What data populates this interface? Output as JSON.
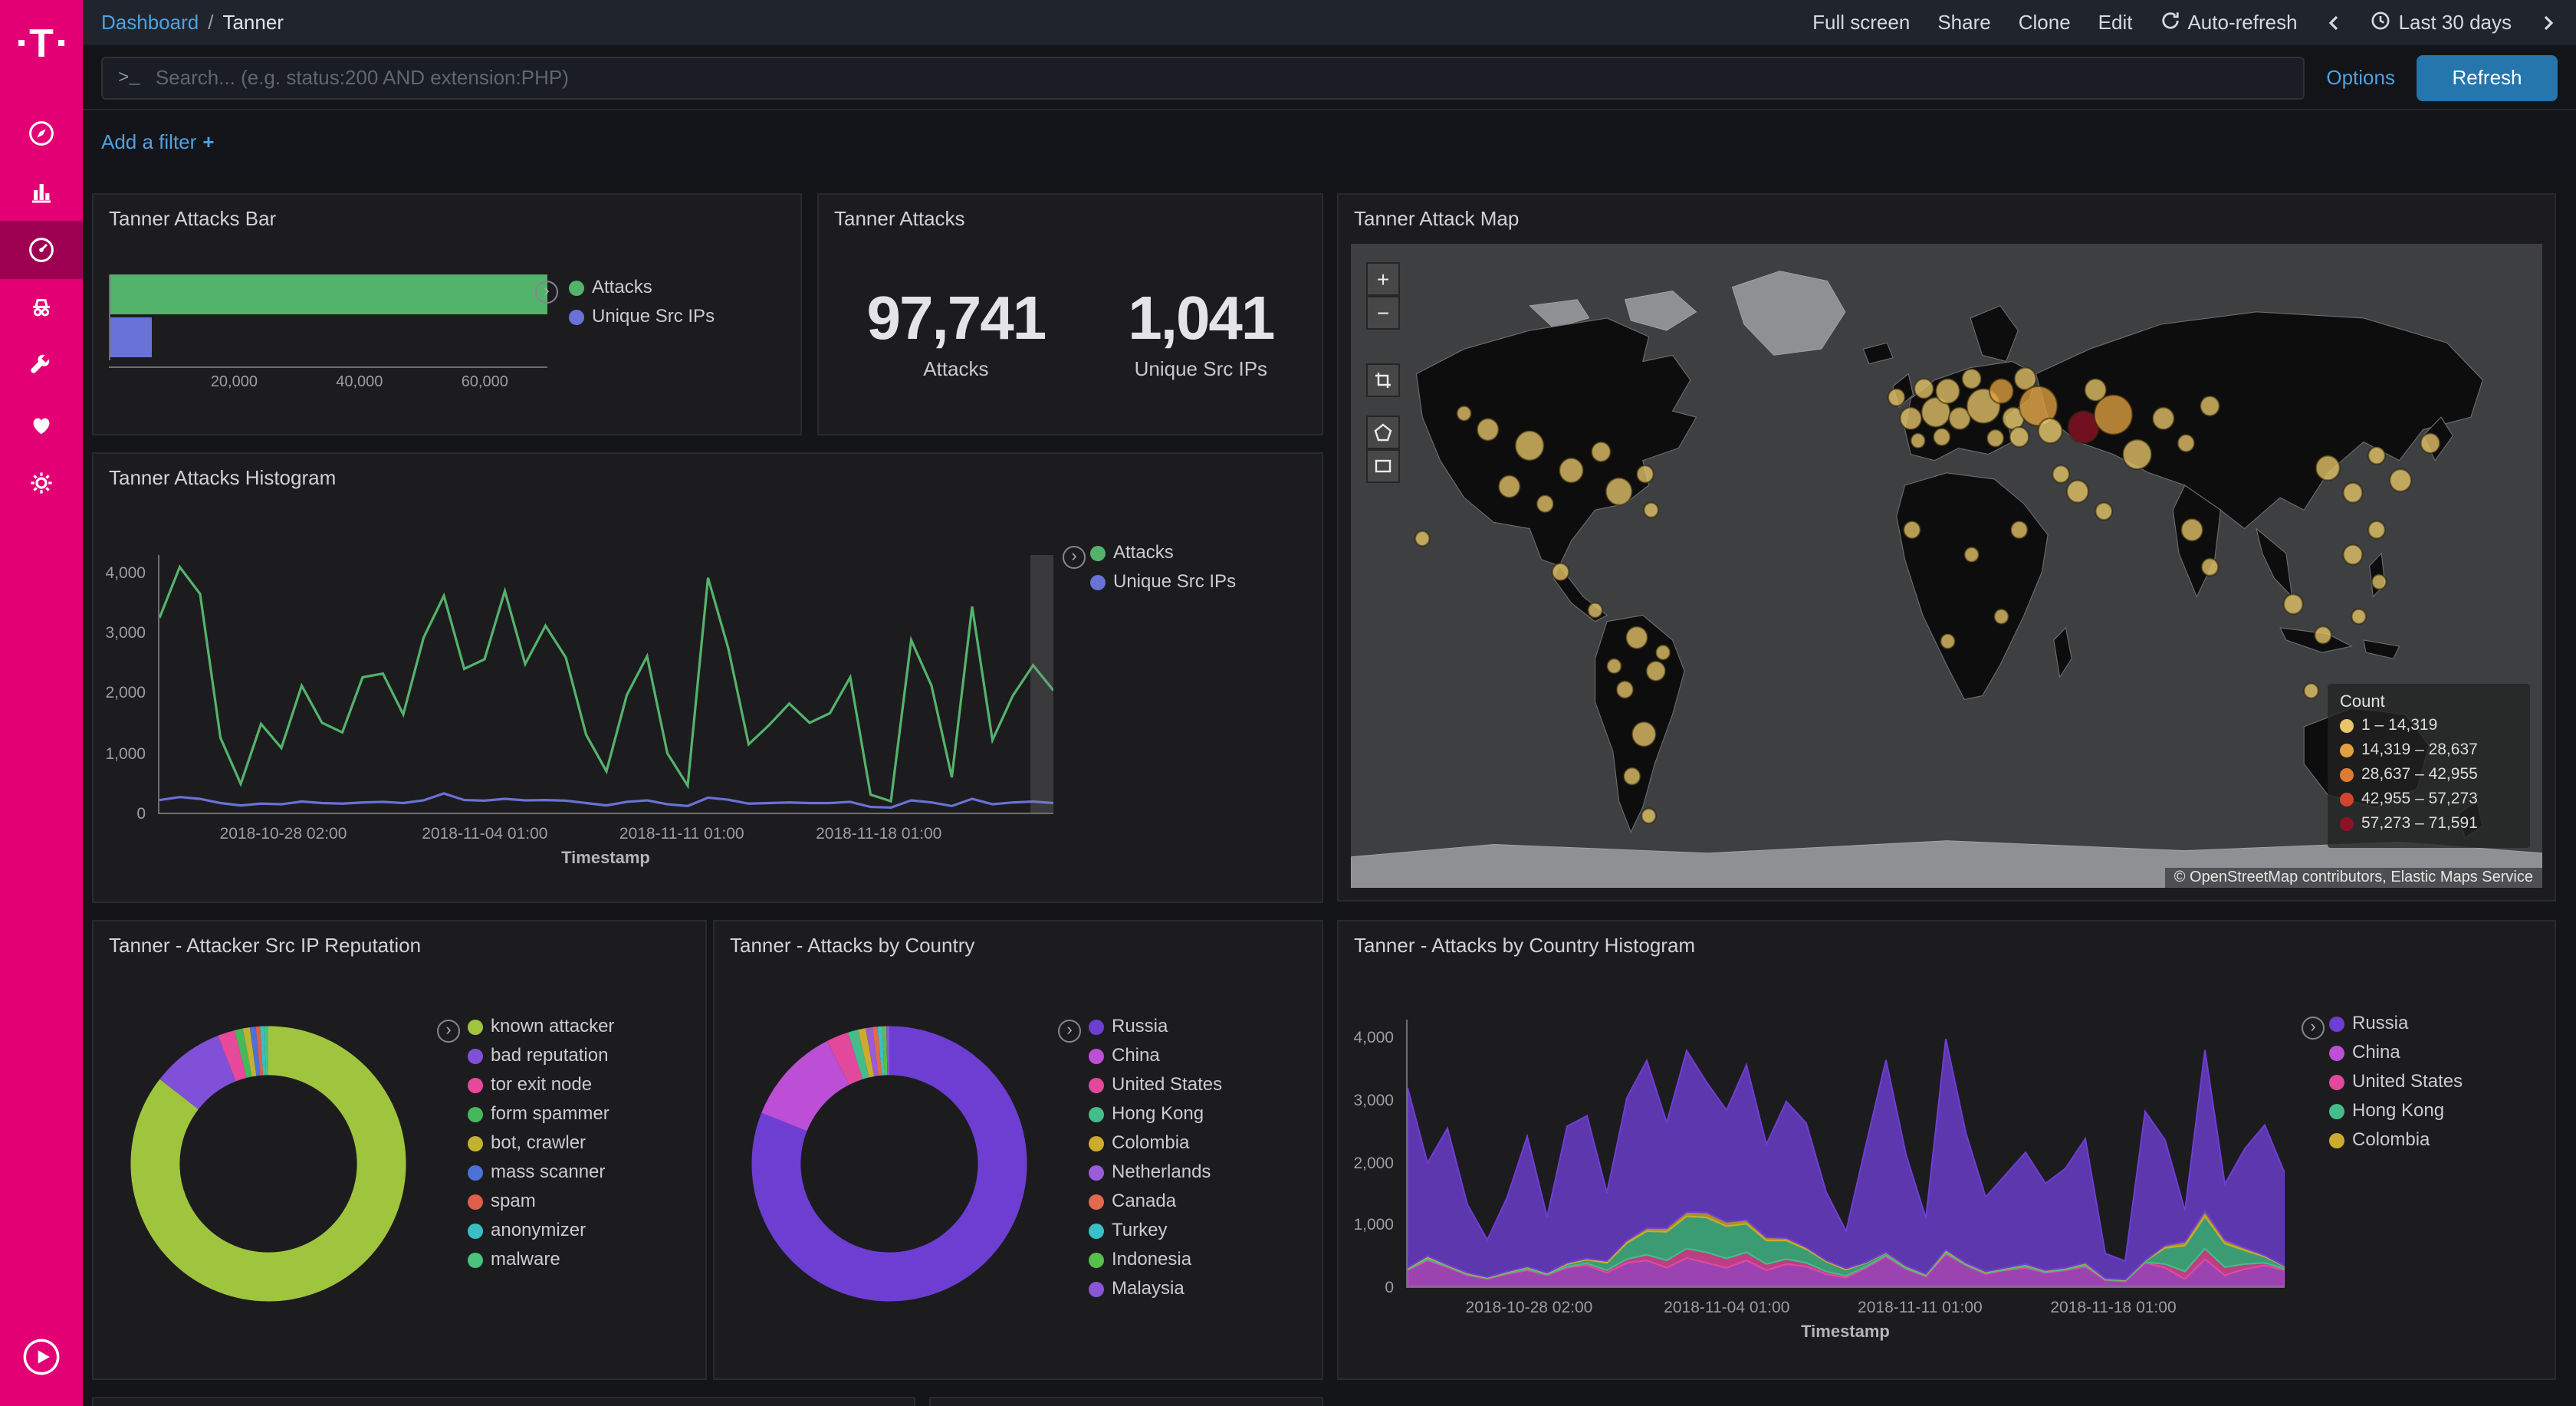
{
  "brand": {
    "logo_letter": "T"
  },
  "topbar": {
    "breadcrumb": {
      "root": "Dashboard",
      "sep": "/",
      "current": "Tanner"
    },
    "actions": {
      "full_screen": "Full screen",
      "share": "Share",
      "clone": "Clone",
      "edit": "Edit"
    },
    "auto_refresh": "Auto-refresh",
    "time_range": "Last 30 days"
  },
  "searchbar": {
    "prompt": ">_",
    "placeholder": "Search... (e.g. status:200 AND extension:PHP)",
    "options_label": "Options",
    "refresh_label": "Refresh"
  },
  "filterbar": {
    "add_filter_label": "Add a filter",
    "plus": "+"
  },
  "panels": {
    "attacks_bar": {
      "title": "Tanner Attacks Bar",
      "chart": {
        "type": "bar",
        "orientation": "horizontal",
        "axis_max": 70000,
        "bars": [
          {
            "label": "Attacks",
            "value": 97741,
            "color": "#54b36b"
          },
          {
            "label": "Unique Src IPs",
            "value": 1041,
            "color": "#6972d6",
            "min_frac": 0.095
          }
        ],
        "xticks": [
          {
            "label": "20,000",
            "v": 20000
          },
          {
            "label": "40,000",
            "v": 40000
          },
          {
            "label": "60,000",
            "v": 60000
          }
        ]
      },
      "legend": [
        {
          "label": "Attacks",
          "color": "#54b36b"
        },
        {
          "label": "Unique Src IPs",
          "color": "#6972d6"
        }
      ]
    },
    "attacks_metric": {
      "title": "Tanner Attacks",
      "metrics": [
        {
          "value": "97,741",
          "label": "Attacks"
        },
        {
          "value": "1,041",
          "label": "Unique Src IPs"
        }
      ]
    },
    "attack_map": {
      "title": "Tanner Attack Map",
      "zoom_in": "+",
      "zoom_out": "−",
      "legend_title": "Count",
      "legend": [
        {
          "label": "1 – 14,319",
          "color": "#e7c568"
        },
        {
          "label": "14,319 – 28,637",
          "color": "#e2a13f"
        },
        {
          "label": "28,637 – 42,955",
          "color": "#df7b33"
        },
        {
          "label": "42,955 – 57,273",
          "color": "#d2452e"
        },
        {
          "label": "57,273 – 71,591",
          "color": "#8e1226"
        }
      ],
      "attribution": "© OpenStreetMap contributors, Elastic Maps Service",
      "markers": [
        [
          115,
          150,
          9,
          0
        ],
        [
          150,
          163,
          12,
          0
        ],
        [
          185,
          183,
          10,
          0
        ],
        [
          210,
          168,
          8,
          0
        ],
        [
          133,
          196,
          9,
          0
        ],
        [
          163,
          210,
          7,
          0
        ],
        [
          225,
          200,
          11,
          0
        ],
        [
          247,
          186,
          7,
          0
        ],
        [
          95,
          137,
          6,
          0
        ],
        [
          252,
          215,
          6,
          0
        ],
        [
          60,
          238,
          6,
          0
        ],
        [
          176,
          265,
          7,
          0
        ],
        [
          205,
          296,
          6,
          0
        ],
        [
          240,
          318,
          9,
          0
        ],
        [
          256,
          345,
          8,
          0
        ],
        [
          230,
          360,
          7,
          0
        ],
        [
          246,
          396,
          10,
          0
        ],
        [
          236,
          430,
          7,
          0
        ],
        [
          262,
          330,
          6,
          0
        ],
        [
          221,
          341,
          6,
          0
        ],
        [
          250,
          462,
          6,
          0
        ],
        [
          458,
          124,
          7,
          0
        ],
        [
          470,
          141,
          9,
          0
        ],
        [
          481,
          117,
          8,
          0
        ],
        [
          491,
          136,
          12,
          0
        ],
        [
          501,
          119,
          10,
          0
        ],
        [
          511,
          141,
          9,
          0
        ],
        [
          521,
          109,
          8,
          0
        ],
        [
          531,
          131,
          14,
          0
        ],
        [
          546,
          119,
          10,
          1
        ],
        [
          556,
          141,
          9,
          0
        ],
        [
          566,
          109,
          9,
          0
        ],
        [
          577,
          131,
          16,
          1
        ],
        [
          587,
          151,
          10,
          0
        ],
        [
          561,
          156,
          8,
          0
        ],
        [
          541,
          157,
          7,
          0
        ],
        [
          496,
          156,
          7,
          0
        ],
        [
          476,
          159,
          6,
          0
        ],
        [
          615,
          148,
          13,
          4
        ],
        [
          640,
          138,
          16,
          1
        ],
        [
          660,
          170,
          12,
          0
        ],
        [
          625,
          118,
          9,
          0
        ],
        [
          610,
          200,
          9,
          0
        ],
        [
          632,
          216,
          7,
          0
        ],
        [
          596,
          186,
          7,
          0
        ],
        [
          682,
          141,
          9,
          0
        ],
        [
          701,
          161,
          7,
          0
        ],
        [
          721,
          131,
          8,
          0
        ],
        [
          706,
          231,
          9,
          0
        ],
        [
          721,
          261,
          7,
          0
        ],
        [
          820,
          181,
          10,
          0
        ],
        [
          841,
          201,
          8,
          0
        ],
        [
          861,
          171,
          7,
          0
        ],
        [
          881,
          191,
          9,
          0
        ],
        [
          906,
          161,
          8,
          0
        ],
        [
          861,
          231,
          7,
          0
        ],
        [
          841,
          251,
          8,
          0
        ],
        [
          791,
          291,
          8,
          0
        ],
        [
          816,
          316,
          7,
          0
        ],
        [
          846,
          301,
          6,
          0
        ],
        [
          863,
          273,
          6,
          0
        ],
        [
          471,
          231,
          7,
          0
        ],
        [
          521,
          251,
          6,
          0
        ],
        [
          546,
          301,
          6,
          0
        ],
        [
          501,
          321,
          6,
          0
        ],
        [
          561,
          231,
          7,
          0
        ],
        [
          806,
          361,
          6,
          0
        ]
      ]
    },
    "attacks_histogram": {
      "title": "Tanner Attacks Histogram",
      "chart": {
        "type": "line",
        "ymax": 4300,
        "yticks": [
          {
            "label": "0",
            "v": 0
          },
          {
            "label": "1,000",
            "v": 1000
          },
          {
            "label": "2,000",
            "v": 2000
          },
          {
            "label": "3,000",
            "v": 3000
          },
          {
            "label": "4,000",
            "v": 4000
          }
        ],
        "xticks": [
          {
            "label": "2018-10-28 02:00",
            "f": 0.14
          },
          {
            "label": "2018-11-04 01:00",
            "f": 0.365
          },
          {
            "label": "2018-11-11 01:00",
            "f": 0.585
          },
          {
            "label": "2018-11-18 01:00",
            "f": 0.805
          }
        ],
        "xlabel": "Timestamp",
        "series": [
          {
            "name": "Attacks",
            "color": "#54b36b",
            "values": [
              3250,
              4100,
              3650,
              1250,
              480,
              1480,
              1080,
              2120,
              1500,
              1340,
              2260,
              2320,
              1640,
              2920,
              3620,
              2400,
              2560,
              3700,
              2480,
              3120,
              2590,
              1300,
              690,
              1960,
              2610,
              990,
              450,
              3920,
              2740,
              1140,
              1460,
              1820,
              1500,
              1660,
              2260,
              300,
              190,
              2880,
              2120,
              590,
              3440,
              1210,
              1950,
              2460,
              2040
            ]
          },
          {
            "name": "Unique Src IPs",
            "color": "#6972d6",
            "values": [
              210,
              260,
              230,
              160,
              120,
              150,
              140,
              185,
              160,
              150,
              170,
              180,
              160,
              205,
              320,
              210,
              200,
              230,
              205,
              210,
              200,
              160,
              120,
              180,
              205,
              140,
              110,
              250,
              215,
              150,
              160,
              170,
              160,
              160,
              180,
              95,
              85,
              205,
              170,
              110,
              230,
              140,
              170,
              185,
              160
            ]
          }
        ]
      },
      "legend": [
        {
          "label": "Attacks",
          "color": "#54b36b"
        },
        {
          "label": "Unique Src IPs",
          "color": "#6972d6"
        }
      ]
    },
    "reputation": {
      "title": "Tanner - Attacker Src IP Reputation",
      "slices": [
        {
          "label": "known attacker",
          "color": "#9fc43e",
          "pct": 85.5
        },
        {
          "label": "bad reputation",
          "color": "#8050d8",
          "pct": 8.5
        },
        {
          "label": "tor exit node",
          "color": "#e8499b",
          "pct": 2
        },
        {
          "label": "form spammer",
          "color": "#46b85c",
          "pct": 1
        },
        {
          "label": "bot, crawler",
          "color": "#c3b231",
          "pct": 0.8
        },
        {
          "label": "mass scanner",
          "color": "#4a72d8",
          "pct": 0.7
        },
        {
          "label": "spam",
          "color": "#df5f4b",
          "pct": 0.5
        },
        {
          "label": "anonymizer",
          "color": "#3abec6",
          "pct": 0.5
        },
        {
          "label": "malware",
          "color": "#49c47a",
          "pct": 0.5
        }
      ]
    },
    "by_country": {
      "title": "Tanner - Attacks by Country",
      "slices": [
        {
          "label": "Russia",
          "color": "#6e3ed2",
          "pct": 81
        },
        {
          "label": "China",
          "color": "#bc4fd6",
          "pct": 11.5
        },
        {
          "label": "United States",
          "color": "#e2499c",
          "pct": 2.6
        },
        {
          "label": "Hong Kong",
          "color": "#44bd8a",
          "pct": 1.2
        },
        {
          "label": "Colombia",
          "color": "#ccab2d",
          "pct": 0.9
        },
        {
          "label": "Netherlands",
          "color": "#9a5cd8",
          "pct": 0.8
        },
        {
          "label": "Canada",
          "color": "#e06a4b",
          "pct": 0.6
        },
        {
          "label": "Turkey",
          "color": "#3ac0c8",
          "pct": 0.5
        },
        {
          "label": "Indonesia",
          "color": "#57bf4a",
          "pct": 0.5
        },
        {
          "label": "Malaysia",
          "color": "#8a55d6",
          "pct": 0.4
        }
      ]
    },
    "by_country_histogram": {
      "title": "Tanner - Attacks by Country Histogram",
      "chart": {
        "type": "area",
        "ymax": 4300,
        "yticks": [
          {
            "label": "0",
            "v": 0
          },
          {
            "label": "1,000",
            "v": 1000
          },
          {
            "label": "2,000",
            "v": 2000
          },
          {
            "label": "3,000",
            "v": 3000
          },
          {
            "label": "4,000",
            "v": 4000
          }
        ],
        "xticks": [
          {
            "label": "2018-10-28 02:00",
            "f": 0.14
          },
          {
            "label": "2018-11-04 01:00",
            "f": 0.365
          },
          {
            "label": "2018-11-11 01:00",
            "f": 0.585
          },
          {
            "label": "2018-11-18 01:00",
            "f": 0.805
          }
        ],
        "xlabel": "Timestamp",
        "series": [
          {
            "name": "China",
            "color": "#bc4fd6",
            "values": [
              260,
              420,
              310,
              180,
              120,
              200,
              260,
              180,
              300,
              340,
              220,
              380,
              420,
              300,
              460,
              380,
              300,
              420,
              260,
              360,
              320,
              200,
              140,
              300,
              480,
              280,
              160,
              520,
              340,
              200,
              260,
              300,
              220,
              260,
              320,
              100,
              80,
              380,
              300,
              120,
              440,
              180,
              280,
              340,
              260
            ]
          },
          {
            "name": "United States",
            "color": "#e2499c",
            "values": [
              10,
              20,
              10,
              10,
              10,
              10,
              20,
              10,
              20,
              30,
              40,
              60,
              90,
              120,
              150,
              170,
              150,
              130,
              100,
              80,
              60,
              40,
              30,
              20,
              20,
              10,
              10,
              20,
              10,
              10,
              10,
              20,
              10,
              10,
              20,
              10,
              10,
              10,
              60,
              120,
              170,
              130,
              80,
              40,
              20
            ]
          },
          {
            "name": "Hong Kong",
            "color": "#44bd8a",
            "values": [
              20,
              30,
              20,
              20,
              10,
              20,
              30,
              20,
              40,
              60,
              120,
              260,
              380,
              460,
              520,
              560,
              520,
              460,
              380,
              300,
              220,
              160,
              100,
              60,
              40,
              30,
              20,
              30,
              20,
              20,
              20,
              30,
              20,
              20,
              30,
              10,
              10,
              20,
              260,
              420,
              520,
              380,
              220,
              100,
              40
            ]
          },
          {
            "name": "Colombia",
            "color": "#ccab2d",
            "values": [
              10,
              20,
              10,
              10,
              10,
              10,
              10,
              10,
              20,
              20,
              30,
              40,
              50,
              60,
              70,
              80,
              70,
              60,
              50,
              40,
              30,
              20,
              20,
              10,
              10,
              10,
              10,
              20,
              10,
              10,
              10,
              10,
              10,
              10,
              10,
              10,
              10,
              10,
              40,
              60,
              80,
              60,
              40,
              20,
              10
            ]
          },
          {
            "name": "Russia",
            "color": "#6e3ed2",
            "values": [
              2900,
              1500,
              2200,
              1100,
              600,
              1200,
              2100,
              900,
              2200,
              2300,
              1100,
              2300,
              2700,
              1700,
              2600,
              2100,
              1800,
              2500,
              1500,
              2200,
              2000,
              1100,
              600,
              1900,
              3100,
              1800,
              900,
              3400,
              2100,
              1200,
              1500,
              1800,
              1400,
              1600,
              2000,
              400,
              300,
              2400,
              1700,
              500,
              2600,
              900,
              1600,
              2100,
              1500
            ]
          }
        ]
      },
      "legend": [
        {
          "label": "Russia",
          "color": "#6e3ed2"
        },
        {
          "label": "China",
          "color": "#bc4fd6"
        },
        {
          "label": "United States",
          "color": "#e2499c"
        },
        {
          "label": "Hong Kong",
          "color": "#44bd8a"
        },
        {
          "label": "Colombia",
          "color": "#ccab2d"
        }
      ]
    }
  }
}
